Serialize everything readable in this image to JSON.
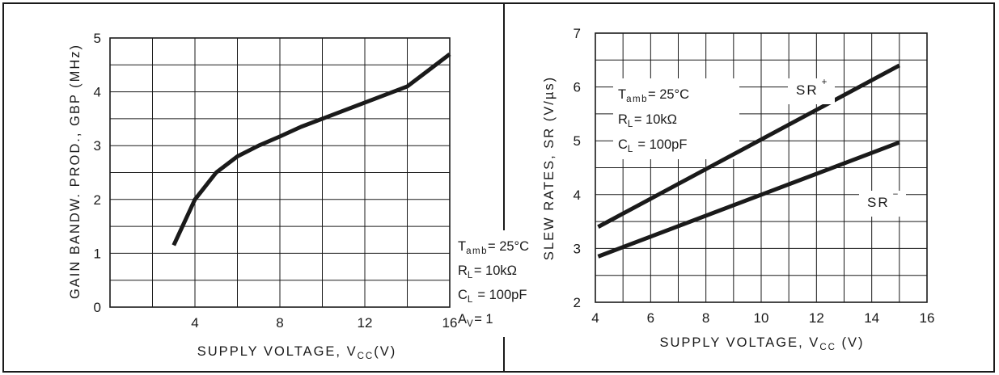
{
  "charts": [
    {
      "id": "gbp",
      "type": "line",
      "xlabel": "SUPPLY VOLTAGE, V",
      "xlabel_sub": "CC",
      "xlabel_unit": "(V)",
      "ylabel": "GAIN BANDW. PROD., GBP (MHz)",
      "xlim": [
        0,
        16
      ],
      "ylim": [
        0,
        5
      ],
      "x_ticks": [
        {
          "v": 4,
          "label": "4"
        },
        {
          "v": 8,
          "label": "8"
        },
        {
          "v": 12,
          "label": "12"
        },
        {
          "v": 16,
          "label": "16"
        }
      ],
      "y_ticks": [
        {
          "v": 0,
          "label": "0"
        },
        {
          "v": 1,
          "label": "1"
        },
        {
          "v": 2,
          "label": "2"
        },
        {
          "v": 3,
          "label": "3"
        },
        {
          "v": 4,
          "label": "4"
        },
        {
          "v": 5,
          "label": "5"
        }
      ],
      "grid": true,
      "series": [
        {
          "x": [
            3,
            4,
            5,
            6,
            7,
            8,
            9,
            10,
            11,
            12,
            13,
            14,
            15,
            16
          ],
          "y": [
            1.15,
            2.0,
            2.5,
            2.8,
            3.0,
            3.17,
            3.35,
            3.5,
            3.65,
            3.8,
            3.95,
            4.1,
            4.4,
            4.7
          ]
        }
      ],
      "annotations": [
        {
          "main": "T",
          "sub": "amb",
          "rest": "= 25°C"
        },
        {
          "main": "R",
          "sub": "L",
          "rest": "= 10kΩ"
        },
        {
          "main": "C",
          "sub": "L",
          "rest": " = 100pF"
        },
        {
          "main": "A",
          "sub": "V",
          "rest": "= 1"
        }
      ],
      "annotation_placement": "bottom-right"
    },
    {
      "id": "slew",
      "type": "line",
      "xlabel": "SUPPLY VOLTAGE, V",
      "xlabel_sub": "CC",
      "xlabel_unit": "(V)",
      "ylabel": "SLEW RATES, SR (V/µs)",
      "xlim": [
        4,
        16
      ],
      "ylim": [
        2,
        7
      ],
      "x_ticks": [
        {
          "v": 4,
          "label": "4"
        },
        {
          "v": 6,
          "label": "6"
        },
        {
          "v": 8,
          "label": "8"
        },
        {
          "v": 10,
          "label": "10"
        },
        {
          "v": 12,
          "label": "12"
        },
        {
          "v": 14,
          "label": "14"
        },
        {
          "v": 16,
          "label": "16"
        }
      ],
      "y_ticks": [
        {
          "v": 2,
          "label": "2"
        },
        {
          "v": 3,
          "label": "3"
        },
        {
          "v": 4,
          "label": "4"
        },
        {
          "v": 5,
          "label": "5"
        },
        {
          "v": 6,
          "label": "6"
        },
        {
          "v": 7,
          "label": "7"
        }
      ],
      "grid": true,
      "series": [
        {
          "name": "SR",
          "sup": "+",
          "x": [
            4.1,
            15
          ],
          "y": [
            3.4,
            6.4
          ]
        },
        {
          "name": "SR",
          "sup": "−",
          "x": [
            4.1,
            15
          ],
          "y": [
            2.85,
            4.97
          ]
        }
      ],
      "annotations": [
        {
          "main": "T",
          "sub": "amb",
          "rest": "= 25°C"
        },
        {
          "main": "R",
          "sub": "L",
          "rest": "= 10kΩ"
        },
        {
          "main": "C",
          "sub": "L",
          "rest": " = 100pF"
        }
      ],
      "annotation_placement": "top-left"
    }
  ],
  "chart_data": [
    {
      "type": "line",
      "title": "",
      "xlabel": "SUPPLY VOLTAGE, VCC (V)",
      "ylabel": "GAIN BANDW. PROD., GBP (MHz)",
      "xlim": [
        0,
        16
      ],
      "ylim": [
        0,
        5
      ],
      "grid": true,
      "series": [
        {
          "x": [
            3,
            4,
            5,
            6,
            7,
            8,
            9,
            10,
            11,
            12,
            13,
            14,
            15,
            16
          ],
          "values": [
            1.15,
            2.0,
            2.5,
            2.8,
            3.0,
            3.17,
            3.35,
            3.5,
            3.65,
            3.8,
            3.95,
            4.1,
            4.4,
            4.7
          ]
        }
      ],
      "annotations": [
        "Tamb= 25°C",
        "RL= 10kΩ",
        "CL = 100pF",
        "AV= 1"
      ]
    },
    {
      "type": "line",
      "title": "",
      "xlabel": "SUPPLY VOLTAGE, VCC (V)",
      "ylabel": "SLEW RATES, SR (V/µs)",
      "xlim": [
        4,
        16
      ],
      "ylim": [
        2,
        7
      ],
      "grid": true,
      "series": [
        {
          "name": "SR+",
          "x": [
            4.1,
            15
          ],
          "values": [
            3.4,
            6.4
          ]
        },
        {
          "name": "SR−",
          "x": [
            4.1,
            15
          ],
          "values": [
            2.85,
            4.97
          ]
        }
      ],
      "annotations": [
        "Tamb= 25°C",
        "RL= 10kΩ",
        "CL = 100pF"
      ]
    }
  ]
}
